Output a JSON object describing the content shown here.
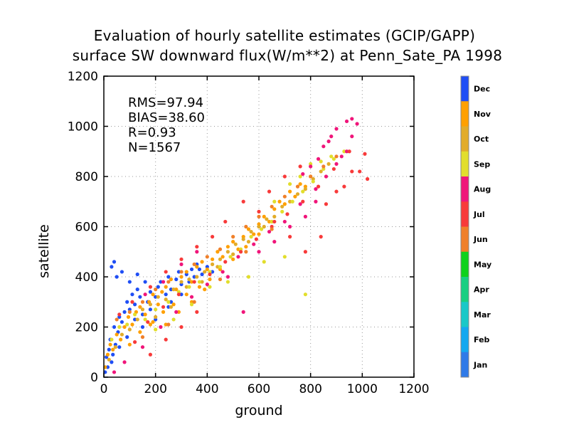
{
  "chart_data": {
    "type": "scatter",
    "title": "Evaluation of hourly satellite estimates (GCIP/GAPP)",
    "subtitle": "surface SW downward flux(W/m**2) at Penn_Sate_PA 1998",
    "xlabel": "ground",
    "ylabel": "satellite",
    "xlim": [
      0,
      1200
    ],
    "ylim": [
      0,
      1200
    ],
    "xticks": [
      "0",
      "200",
      "400",
      "600",
      "800",
      "1000",
      "1200"
    ],
    "yticks": [
      "0",
      "200",
      "400",
      "600",
      "800",
      "1000",
      "1200"
    ],
    "grid": true,
    "stats": {
      "rms": "RMS=97.94",
      "bias": "BIAS=38.60",
      "r": "R=0.93",
      "n": "N=1567"
    },
    "colorbar": {
      "placement": "right",
      "entries": [
        {
          "label": "Dec",
          "color": "#1f4ef5"
        },
        {
          "label": "Nov",
          "color": "#ffa000"
        },
        {
          "label": "Oct",
          "color": "#e2ac2a"
        },
        {
          "label": "Sep",
          "color": "#e2de2c"
        },
        {
          "label": "Aug",
          "color": "#f0157a"
        },
        {
          "label": "Jul",
          "color": "#f83a3a"
        },
        {
          "label": "Jun",
          "color": "#f0802a"
        },
        {
          "label": "May",
          "color": "#0fd21c"
        },
        {
          "label": "Apr",
          "color": "#19cf82"
        },
        {
          "label": "Mar",
          "color": "#19c8c8"
        },
        {
          "label": "Feb",
          "color": "#14a8f0"
        },
        {
          "label": "Jan",
          "color": "#2f7ae8"
        }
      ]
    },
    "series": [
      {
        "month": "Dec",
        "color": "#1f4ef5",
        "points": [
          [
            10,
            80
          ],
          [
            20,
            110
          ],
          [
            25,
            150
          ],
          [
            30,
            60
          ],
          [
            40,
            200
          ],
          [
            45,
            130
          ],
          [
            55,
            180
          ],
          [
            60,
            240
          ],
          [
            70,
            220
          ],
          [
            80,
            260
          ],
          [
            90,
            300
          ],
          [
            100,
            270
          ],
          [
            110,
            330
          ],
          [
            120,
            290
          ],
          [
            130,
            350
          ],
          [
            140,
            320
          ],
          [
            150,
            250
          ],
          [
            160,
            380
          ],
          [
            170,
            300
          ],
          [
            180,
            340
          ],
          [
            200,
            320
          ],
          [
            210,
            360
          ],
          [
            220,
            380
          ],
          [
            240,
            330
          ],
          [
            250,
            400
          ],
          [
            260,
            350
          ],
          [
            280,
            390
          ],
          [
            290,
            420
          ],
          [
            300,
            370
          ],
          [
            320,
            410
          ],
          [
            340,
            430
          ],
          [
            350,
            400
          ],
          [
            360,
            450
          ],
          [
            380,
            410
          ],
          [
            400,
            440
          ],
          [
            420,
            420
          ],
          [
            30,
            440
          ],
          [
            40,
            460
          ],
          [
            50,
            400
          ],
          [
            70,
            420
          ],
          [
            100,
            380
          ],
          [
            130,
            410
          ],
          [
            180,
            270
          ],
          [
            200,
            230
          ],
          [
            150,
            200
          ],
          [
            120,
            230
          ],
          [
            90,
            160
          ],
          [
            60,
            120
          ],
          [
            35,
            90
          ],
          [
            15,
            40
          ],
          [
            5,
            20
          ],
          [
            260,
            300
          ],
          [
            300,
            330
          ],
          [
            330,
            380
          ],
          [
            370,
            430
          ],
          [
            250,
            280
          ]
        ]
      },
      {
        "month": "Nov",
        "color": "#ffa000",
        "points": [
          [
            5,
            40
          ],
          [
            15,
            90
          ],
          [
            25,
            130
          ],
          [
            35,
            110
          ],
          [
            50,
            170
          ],
          [
            65,
            150
          ],
          [
            80,
            200
          ],
          [
            95,
            240
          ],
          [
            110,
            210
          ],
          [
            125,
            260
          ],
          [
            140,
            280
          ],
          [
            160,
            250
          ],
          [
            175,
            300
          ],
          [
            190,
            330
          ],
          [
            210,
            290
          ],
          [
            225,
            340
          ],
          [
            240,
            360
          ],
          [
            260,
            390
          ],
          [
            280,
            350
          ],
          [
            300,
            400
          ],
          [
            320,
            420
          ],
          [
            340,
            380
          ],
          [
            360,
            440
          ],
          [
            380,
            460
          ],
          [
            400,
            430
          ],
          [
            420,
            470
          ],
          [
            440,
            500
          ],
          [
            460,
            480
          ],
          [
            480,
            520
          ],
          [
            500,
            540
          ],
          [
            520,
            510
          ],
          [
            540,
            560
          ],
          [
            560,
            590
          ],
          [
            580,
            570
          ],
          [
            600,
            610
          ],
          [
            620,
            640
          ],
          [
            640,
            620
          ],
          [
            660,
            670
          ],
          [
            680,
            700
          ],
          [
            700,
            690
          ],
          [
            720,
            740
          ],
          [
            740,
            720
          ],
          [
            760,
            770
          ],
          [
            780,
            760
          ],
          [
            800,
            800
          ],
          [
            100,
            130
          ],
          [
            140,
            180
          ],
          [
            180,
            210
          ],
          [
            230,
            260
          ],
          [
            270,
            290
          ],
          [
            320,
            330
          ],
          [
            370,
            360
          ],
          [
            410,
            390
          ],
          [
            450,
            430
          ],
          [
            500,
            470
          ],
          [
            550,
            520
          ],
          [
            600,
            570
          ],
          [
            650,
            620
          ],
          [
            190,
            220
          ],
          [
            240,
            210
          ],
          [
            290,
            260
          ],
          [
            340,
            300
          ],
          [
            390,
            350
          ]
        ]
      },
      {
        "month": "Oct",
        "color": "#e2ac2a",
        "points": [
          [
            20,
            70
          ],
          [
            45,
            120
          ],
          [
            70,
            170
          ],
          [
            100,
            190
          ],
          [
            130,
            230
          ],
          [
            150,
            270
          ],
          [
            180,
            290
          ],
          [
            210,
            320
          ],
          [
            240,
            310
          ],
          [
            270,
            350
          ],
          [
            300,
            380
          ],
          [
            330,
            390
          ],
          [
            360,
            400
          ],
          [
            390,
            420
          ],
          [
            420,
            450
          ],
          [
            450,
            470
          ],
          [
            480,
            500
          ],
          [
            510,
            530
          ],
          [
            540,
            550
          ],
          [
            570,
            580
          ],
          [
            600,
            600
          ],
          [
            630,
            630
          ],
          [
            660,
            640
          ],
          [
            690,
            680
          ],
          [
            720,
            700
          ],
          [
            750,
            730
          ],
          [
            780,
            750
          ],
          [
            810,
            790
          ],
          [
            840,
            820
          ],
          [
            870,
            850
          ],
          [
            200,
            240
          ],
          [
            260,
            280
          ],
          [
            320,
            360
          ],
          [
            380,
            380
          ],
          [
            440,
            440
          ],
          [
            500,
            490
          ],
          [
            560,
            540
          ],
          [
            620,
            600
          ]
        ]
      },
      {
        "month": "Sep",
        "color": "#e2de2c",
        "points": [
          [
            30,
            150
          ],
          [
            60,
            200
          ],
          [
            90,
            210
          ],
          [
            120,
            250
          ],
          [
            160,
            230
          ],
          [
            200,
            270
          ],
          [
            250,
            300
          ],
          [
            290,
            340
          ],
          [
            330,
            360
          ],
          [
            370,
            380
          ],
          [
            410,
            420
          ],
          [
            450,
            440
          ],
          [
            490,
            480
          ],
          [
            530,
            510
          ],
          [
            570,
            560
          ],
          [
            610,
            590
          ],
          [
            650,
            620
          ],
          [
            690,
            660
          ],
          [
            730,
            700
          ],
          [
            770,
            740
          ],
          [
            810,
            780
          ],
          [
            850,
            830
          ],
          [
            890,
            870
          ],
          [
            930,
            900
          ],
          [
            780,
            330
          ],
          [
            700,
            480
          ],
          [
            620,
            460
          ],
          [
            560,
            400
          ],
          [
            480,
            380
          ],
          [
            410,
            360
          ],
          [
            340,
            290
          ],
          [
            270,
            230
          ],
          [
            200,
            190
          ],
          [
            720,
            770
          ],
          [
            760,
            800
          ],
          [
            800,
            850
          ],
          [
            840,
            860
          ],
          [
            880,
            880
          ],
          [
            660,
            700
          ]
        ]
      },
      {
        "month": "Aug",
        "color": "#f0157a",
        "points": [
          [
            40,
            20
          ],
          [
            80,
            60
          ],
          [
            150,
            120
          ],
          [
            220,
            200
          ],
          [
            280,
            260
          ],
          [
            340,
            320
          ],
          [
            400,
            370
          ],
          [
            460,
            420
          ],
          [
            520,
            480
          ],
          [
            580,
            530
          ],
          [
            640,
            580
          ],
          [
            700,
            620
          ],
          [
            760,
            690
          ],
          [
            820,
            750
          ],
          [
            860,
            800
          ],
          [
            900,
            850
          ],
          [
            920,
            880
          ],
          [
            940,
            900
          ],
          [
            960,
            960
          ],
          [
            980,
            1010
          ],
          [
            880,
            960
          ],
          [
            850,
            920
          ],
          [
            830,
            870
          ],
          [
            800,
            840
          ],
          [
            770,
            810
          ],
          [
            940,
            1020
          ],
          [
            960,
            1030
          ],
          [
            900,
            990
          ],
          [
            870,
            940
          ],
          [
            540,
            260
          ],
          [
            480,
            400
          ],
          [
            600,
            500
          ],
          [
            660,
            540
          ],
          [
            720,
            600
          ],
          [
            780,
            640
          ],
          [
            820,
            700
          ],
          [
            160,
            330
          ],
          [
            230,
            380
          ],
          [
            300,
            450
          ],
          [
            360,
            500
          ]
        ]
      },
      {
        "month": "Jul",
        "color": "#f83a3a",
        "points": [
          [
            60,
            250
          ],
          [
            110,
            300
          ],
          [
            170,
            220
          ],
          [
            230,
            280
          ],
          [
            290,
            330
          ],
          [
            350,
            380
          ],
          [
            410,
            410
          ],
          [
            470,
            460
          ],
          [
            530,
            500
          ],
          [
            590,
            550
          ],
          [
            650,
            600
          ],
          [
            710,
            650
          ],
          [
            770,
            700
          ],
          [
            830,
            760
          ],
          [
            890,
            830
          ],
          [
            950,
            900
          ],
          [
            1010,
            890
          ],
          [
            1020,
            790
          ],
          [
            990,
            820
          ],
          [
            930,
            760
          ],
          [
            860,
            690
          ],
          [
            840,
            560
          ],
          [
            780,
            500
          ],
          [
            720,
            560
          ],
          [
            660,
            620
          ],
          [
            600,
            660
          ],
          [
            540,
            700
          ],
          [
            470,
            620
          ],
          [
            420,
            560
          ],
          [
            360,
            520
          ],
          [
            300,
            470
          ],
          [
            240,
            420
          ],
          [
            180,
            360
          ],
          [
            120,
            140
          ],
          [
            180,
            90
          ],
          [
            240,
            150
          ],
          [
            300,
            200
          ],
          [
            360,
            260
          ],
          [
            900,
            740
          ],
          [
            960,
            820
          ],
          [
            760,
            840
          ],
          [
            700,
            800
          ],
          [
            640,
            740
          ]
        ]
      },
      {
        "month": "Jun",
        "color": "#f0802a",
        "points": [
          [
            50,
            230
          ],
          [
            100,
            260
          ],
          [
            150,
            300
          ],
          [
            200,
            350
          ],
          [
            250,
            380
          ],
          [
            300,
            420
          ],
          [
            350,
            450
          ],
          [
            400,
            480
          ],
          [
            450,
            510
          ],
          [
            500,
            560
          ],
          [
            550,
            600
          ],
          [
            600,
            640
          ],
          [
            650,
            680
          ],
          [
            700,
            720
          ],
          [
            750,
            760
          ],
          [
            800,
            800
          ],
          [
            850,
            840
          ],
          [
            900,
            880
          ],
          [
            650,
            590
          ],
          [
            550,
            500
          ],
          [
            450,
            390
          ],
          [
            350,
            300
          ],
          [
            250,
            210
          ],
          [
            150,
            160
          ]
        ]
      }
    ]
  }
}
